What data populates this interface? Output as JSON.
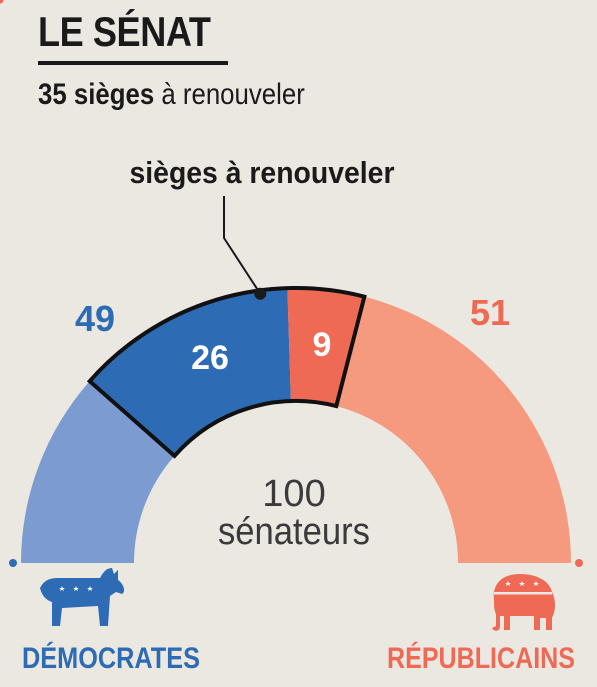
{
  "title": "LE SÉNAT",
  "subtitle": {
    "bold": "35 sièges",
    "rest": " à renouveler"
  },
  "callout": "sièges à renouveler",
  "center_label": [
    "100",
    "sénateurs"
  ],
  "parties": {
    "dem": {
      "name": "DÉMOCRATES",
      "total": "49",
      "renew": "26",
      "color": "#2e6bb5",
      "light": "#7c9bd1"
    },
    "rep": {
      "name": "RÉPUBLICAINS",
      "total": "51",
      "renew": "9",
      "color": "#ef6a55",
      "light": "#f59a7f"
    }
  },
  "chart_data": {
    "type": "pie",
    "subtype": "half-donut",
    "total": 100,
    "segments": [
      {
        "party": "Démocrates",
        "status": "non renouvelés",
        "value": 23
      },
      {
        "party": "Démocrates",
        "status": "à renouveler",
        "value": 26
      },
      {
        "party": "Républicains",
        "status": "à renouveler",
        "value": 9
      },
      {
        "party": "Républicains",
        "status": "non renouvelés",
        "value": 42
      }
    ],
    "party_totals": {
      "Démocrates": 49,
      "Républicains": 51
    }
  }
}
